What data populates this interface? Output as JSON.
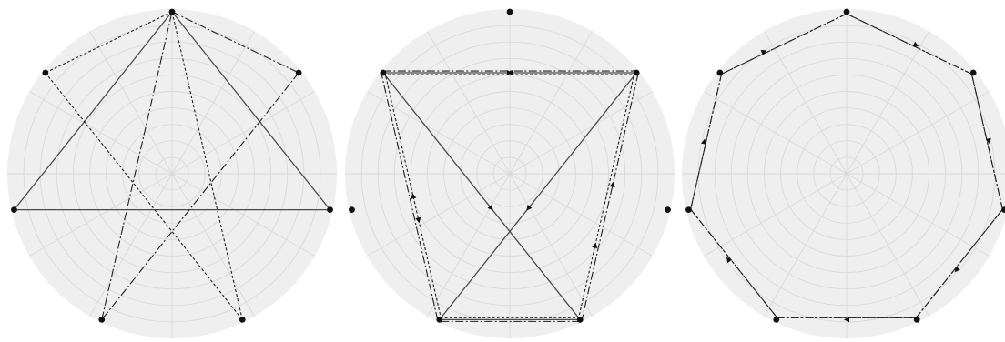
{
  "figure": {
    "colors": {
      "disc": "#efefef",
      "grid": "#d9d9d9",
      "edge": "#1e1e1e",
      "solid_edge": "#4a4a4a",
      "vertex": "#111111"
    },
    "panels": [
      {
        "id": "panel-1",
        "vertex_count": 7,
        "polygon_angles_deg": [
          90,
          141.43,
          192.86,
          244.29,
          295.71,
          347.14,
          38.57
        ],
        "solid_closed": [
          0,
          2,
          5
        ],
        "dashed_closed": [
          0,
          1,
          4
        ],
        "dashdot_closed": [
          0,
          6,
          3
        ],
        "arrows": []
      },
      {
        "id": "panel-2",
        "vertex_count": 7,
        "polygon_angles_deg": [
          90,
          141.43,
          192.86,
          244.29,
          295.71,
          347.14,
          38.57
        ],
        "solid_closed": [
          1,
          6,
          3,
          4
        ],
        "dashed_closed": [
          1,
          6,
          4,
          3
        ],
        "dashdot_closed": [
          1,
          6,
          4,
          3
        ],
        "arrows": [
          {
            "from": 1,
            "to": 6,
            "t": 0.5,
            "offset": 0
          },
          {
            "from": 6,
            "to": 1,
            "t": 0.5,
            "offset": 0
          },
          {
            "from": 6,
            "to": 3,
            "t": 0.55,
            "offset": 0
          },
          {
            "from": 1,
            "to": 4,
            "t": 0.55,
            "offset": 0
          },
          {
            "from": 3,
            "to": 1,
            "t": 0.5,
            "offset": 2
          },
          {
            "from": 1,
            "to": 3,
            "t": 0.6,
            "offset": -2
          },
          {
            "from": 4,
            "to": 6,
            "t": 0.55,
            "offset": 2
          },
          {
            "from": 4,
            "to": 6,
            "t": 0.3,
            "offset": -2
          }
        ]
      },
      {
        "id": "panel-3",
        "vertex_count": 7,
        "polygon_angles_deg": [
          90,
          141.43,
          192.86,
          244.29,
          295.71,
          347.14,
          38.57
        ],
        "dashed_closed": [
          0,
          6,
          5,
          4,
          3,
          2,
          1
        ],
        "dashdot_closed": [
          0,
          1,
          2,
          3,
          4,
          5,
          6
        ],
        "arrows": [
          {
            "from": 1,
            "to": 0,
            "t": 0.35,
            "offset": 0
          },
          {
            "from": 0,
            "to": 6,
            "t": 0.55,
            "offset": 0
          },
          {
            "from": 6,
            "to": 5,
            "t": 0.5,
            "offset": 0
          },
          {
            "from": 5,
            "to": 4,
            "t": 0.55,
            "offset": 0
          },
          {
            "from": 4,
            "to": 3,
            "t": 0.5,
            "offset": 0
          },
          {
            "from": 3,
            "to": 2,
            "t": 0.55,
            "offset": 0
          },
          {
            "from": 2,
            "to": 1,
            "t": 0.5,
            "offset": 0
          }
        ]
      }
    ]
  }
}
